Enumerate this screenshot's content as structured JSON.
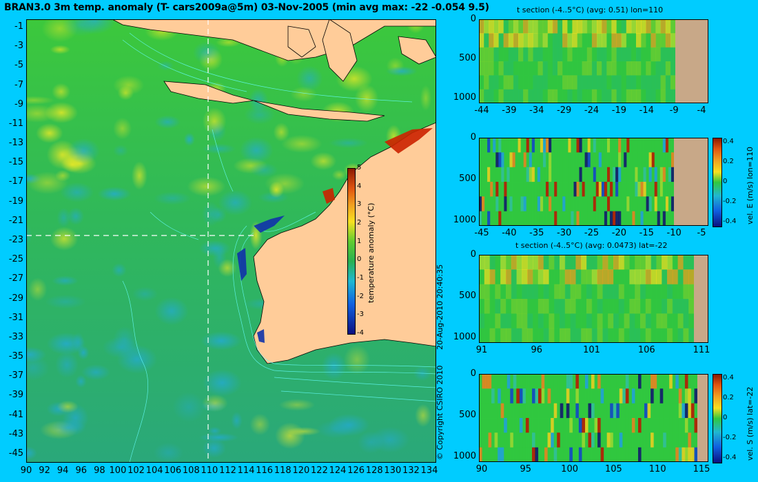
{
  "title": "BRAN3.0 3m temp. anomaly (T- cars2009a@5m) 03-Nov-2005 (min avg max: -22 -0.054 9.5)",
  "copyright": "© Copyright CSIRO 2010",
  "timestamp": "20-Aug-2010 20:40:35",
  "colors": {
    "background": "#00ccff",
    "ocean_base": "#22b84a",
    "land": "#ffcc99",
    "section_land": "#c8a888",
    "contour": "#66ffff",
    "crosshair": "#ffffff"
  },
  "map": {
    "lat_ticks": [
      "-1",
      "-3",
      "-5",
      "-7",
      "-9",
      "-11",
      "-13",
      "-15",
      "-17",
      "-19",
      "-21",
      "-23",
      "-25",
      "-27",
      "-29",
      "-31",
      "-33",
      "-35",
      "-37",
      "-39",
      "-41",
      "-43",
      "-45"
    ],
    "lon_ticks": [
      "90",
      "92",
      "94",
      "96",
      "98",
      "100",
      "102",
      "104",
      "106",
      "108",
      "110",
      "112",
      "114",
      "116",
      "118",
      "120",
      "122",
      "124",
      "126",
      "128",
      "130",
      "132",
      "134"
    ],
    "lon_range": [
      90,
      135
    ],
    "lat_range": [
      -45,
      0
    ],
    "crosshair_lon": 110,
    "crosshair_lat": -22,
    "colorbar": {
      "label": "temperature anomaly (°C)",
      "ticks": [
        "5",
        "4",
        "3",
        "2",
        "1",
        "0",
        "-1",
        "-2",
        "-3",
        "-4"
      ],
      "range": [
        -4,
        5
      ]
    }
  },
  "panels": [
    {
      "title": "t section (-4..5°C) (avg: 0.51) lon=110",
      "y_ticks": [
        "0",
        "500",
        "1000"
      ],
      "x_ticks": [
        "-44",
        "-39",
        "-34",
        "-29",
        "-24",
        "-19",
        "-14",
        "-9",
        "-4"
      ],
      "side_label": "",
      "colorbar_ticks": []
    },
    {
      "title": "",
      "y_ticks": [
        "0",
        "500",
        "1000"
      ],
      "x_ticks": [
        "-45",
        "-40",
        "-35",
        "-30",
        "-25",
        "-20",
        "-15",
        "-10",
        "-5"
      ],
      "side_label": "vel. E (m/s) lon=110",
      "colorbar_ticks": [
        "0.4",
        "0.2",
        "0",
        "-0.2",
        "-0.4"
      ]
    },
    {
      "title": "t section (-4..5°C) (avg: 0.0473) lat=-22",
      "y_ticks": [
        "0",
        "500",
        "1000"
      ],
      "x_ticks": [
        "91",
        "96",
        "101",
        "106",
        "111"
      ],
      "side_label": "",
      "colorbar_ticks": []
    },
    {
      "title": "",
      "y_ticks": [
        "0",
        "500",
        "1000"
      ],
      "x_ticks": [
        "90",
        "95",
        "100",
        "105",
        "110",
        "115"
      ],
      "side_label": "vel. S (m/s) lat=-22",
      "colorbar_ticks": [
        "0.4",
        "0.2",
        "0",
        "-0.2",
        "-0.4"
      ]
    }
  ],
  "chart_data": [
    {
      "type": "heatmap",
      "title": "BRAN3.0 3m temp. anomaly (T- cars2009a@5m) 03-Nov-2005 (min avg max: -22 -0.054 9.5)",
      "xlim": [
        90,
        135
      ],
      "ylim": [
        -45,
        0
      ],
      "colorbar_label": "temperature anomaly (°C)",
      "value_range": [
        -4,
        5
      ],
      "stats": {
        "min": -22,
        "avg": -0.054,
        "max": 9.5
      }
    },
    {
      "type": "heatmap",
      "title": "t section (-4..5°C) (avg: 0.51) lon=110",
      "ylim": [
        1000,
        0
      ],
      "value_range": [
        -4,
        5
      ],
      "avg": 0.51
    },
    {
      "type": "heatmap",
      "title": "vel. E (m/s) lon=110",
      "ylim": [
        1000,
        0
      ],
      "value_range": [
        -0.4,
        0.4
      ]
    },
    {
      "type": "heatmap",
      "title": "t section (-4..5°C) (avg: 0.0473) lat=-22",
      "ylim": [
        1000,
        0
      ],
      "value_range": [
        -4,
        5
      ],
      "avg": 0.0473
    },
    {
      "type": "heatmap",
      "title": "vel. S (m/s) lat=-22",
      "ylim": [
        1000,
        0
      ],
      "value_range": [
        -0.4,
        0.4
      ]
    }
  ]
}
